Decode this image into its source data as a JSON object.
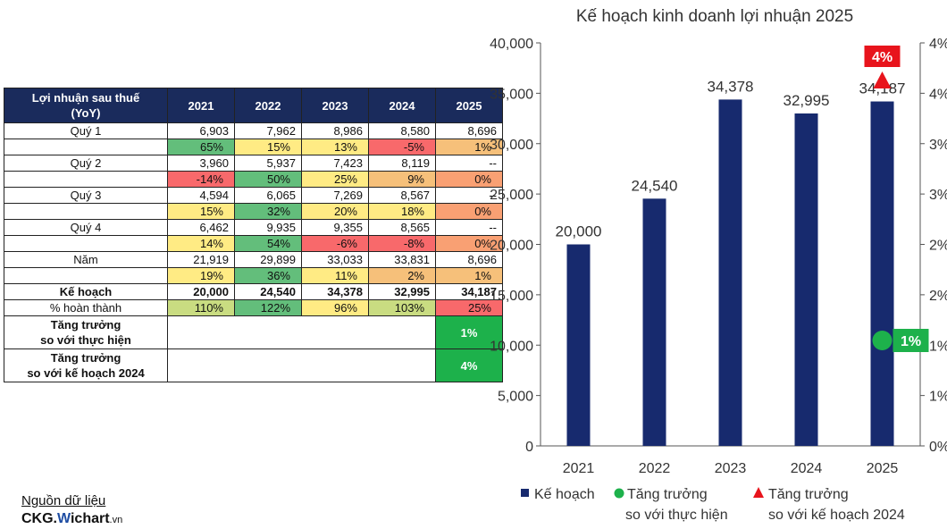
{
  "table": {
    "header": [
      "Lợi nhuận sau thuế (YoY)",
      "2021",
      "2022",
      "2023",
      "2024",
      "2025"
    ],
    "rows": [
      {
        "label": "Quý 1",
        "values": [
          "6,903",
          "7,962",
          "8,986",
          "8,580",
          "8,696"
        ],
        "growth": [
          "65%",
          "15%",
          "13%",
          "-5%",
          "1%"
        ]
      },
      {
        "label": "Quý 2",
        "values": [
          "3,960",
          "5,937",
          "7,423",
          "8,119",
          "--"
        ],
        "growth": [
          "-14%",
          "50%",
          "25%",
          "9%",
          "0%"
        ]
      },
      {
        "label": "Quý 3",
        "values": [
          "4,594",
          "6,065",
          "7,269",
          "8,567",
          "--"
        ],
        "growth": [
          "15%",
          "32%",
          "20%",
          "18%",
          "0%"
        ]
      },
      {
        "label": "Quý 4",
        "values": [
          "6,462",
          "9,935",
          "9,355",
          "8,565",
          "--"
        ],
        "growth": [
          "14%",
          "54%",
          "-6%",
          "-8%",
          "0%"
        ]
      },
      {
        "label": "Năm",
        "values": [
          "21,919",
          "29,899",
          "33,033",
          "33,831",
          "8,696"
        ],
        "growth": [
          "19%",
          "36%",
          "11%",
          "2%",
          "1%"
        ]
      }
    ],
    "plan": {
      "label": "Kế hoạch",
      "values": [
        "20,000",
        "24,540",
        "34,378",
        "32,995",
        "34,187"
      ]
    },
    "completion": {
      "label": "% hoàn thành",
      "values": [
        "110%",
        "122%",
        "96%",
        "103%",
        "25%"
      ]
    },
    "growth_actual": {
      "label": "Tăng trưởng so với thực hiện",
      "value": "1%"
    },
    "growth_plan": {
      "label": "Tăng trưởng so với kế hoạch 2024",
      "value": "4%"
    }
  },
  "colors": {
    "header_bg": "#1a2b5c",
    "bar": "#172a6e",
    "green": "#1db14b",
    "red": "#e8141c",
    "good": "#63be7b",
    "mid": "#ffeb84",
    "bad": "#f8696b"
  },
  "chart_data": {
    "type": "bar",
    "title": "Kế hoạch kinh doanh lợi nhuận 2025",
    "categories": [
      "2021",
      "2022",
      "2023",
      "2024",
      "2025"
    ],
    "series": [
      {
        "name": "Kế hoạch",
        "values": [
          20000,
          24540,
          34378,
          32995,
          34187
        ],
        "labels": [
          "20,000",
          "24,540",
          "34,378",
          "32,995",
          "34,187"
        ]
      }
    ],
    "markers": [
      {
        "name": "Tăng trưởng so với thực hiện",
        "category": "2025",
        "value": 1,
        "label": "1%",
        "shape": "circle",
        "axis": "right"
      },
      {
        "name": "Tăng trưởng so với kế hoạch 2024",
        "category": "2025",
        "value": 4,
        "label": "4%",
        "shape": "triangle",
        "axis": "right"
      }
    ],
    "ylim": [
      0,
      40000
    ],
    "y_ticks": [
      "0",
      "5,000",
      "10,000",
      "15,000",
      "20,000",
      "25,000",
      "30,000",
      "35,000",
      "40,000"
    ],
    "y2_ticks": [
      "0%",
      "1%",
      "1%",
      "2%",
      "2%",
      "3%",
      "3%",
      "4%",
      "4%"
    ],
    "legend_position": "bottom",
    "legend": [
      "Kế hoạch",
      "Tăng trưởng so với thực hiện",
      "Tăng trưởng so với kế hoạch 2024"
    ]
  },
  "footer": {
    "source_label": "Nguồn dữ liệu",
    "logo_left": "CKG.",
    "logo_w": "W",
    "logo_mid": "ichart",
    "logo_vn": ".vn"
  }
}
